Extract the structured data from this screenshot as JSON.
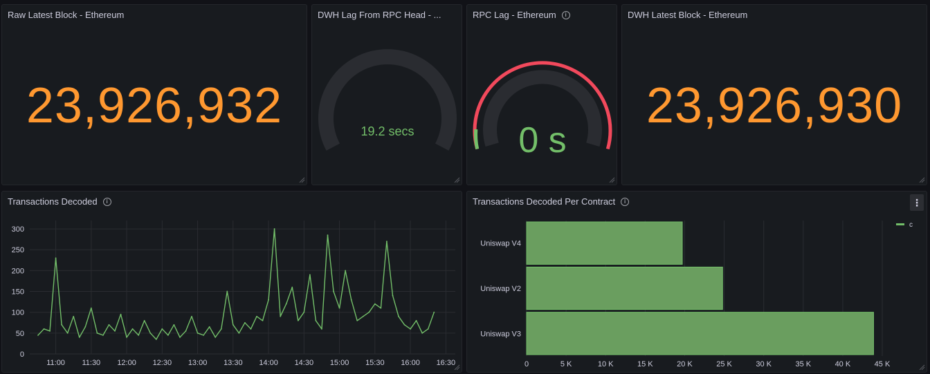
{
  "panels": {
    "raw_latest_block": {
      "title": "Raw Latest Block - Ethereum",
      "value": "23,926,932"
    },
    "dwh_lag": {
      "title": "DWH Lag From RPC Head - ...",
      "value": "19.2 secs"
    },
    "rpc_lag": {
      "title": "RPC Lag - Ethereum",
      "value": "0 s"
    },
    "dwh_latest_block": {
      "title": "DWH Latest Block - Ethereum",
      "value": "23,926,930"
    },
    "tx_decoded": {
      "title": "Transactions Decoded"
    },
    "tx_per_contract": {
      "title": "Transactions Decoded Per Contract",
      "legend": "c"
    }
  },
  "colors": {
    "stat": "#ff9830",
    "green": "#73bf69",
    "bar_fill": "#6a9e5f",
    "red": "#f2495c",
    "gauge_track": "#2a2c31"
  },
  "icons": {
    "info": "info-icon",
    "menu": "kebab-menu-icon",
    "resize": "resize-handle-icon"
  },
  "chart_data": [
    {
      "type": "line",
      "title": "Transactions Decoded",
      "ylim": [
        0,
        320
      ],
      "yticks": [
        0,
        50,
        100,
        150,
        200,
        250,
        300
      ],
      "xticks": [
        "11:00",
        "11:30",
        "12:00",
        "12:30",
        "13:00",
        "13:30",
        "14:00",
        "14:30",
        "15:00",
        "15:30",
        "16:00",
        "16:30"
      ],
      "grid": true,
      "series": [
        {
          "x": [
            "10:45",
            "10:50",
            "10:55",
            "11:00",
            "11:05",
            "11:10",
            "11:15",
            "11:20",
            "11:25",
            "11:30",
            "11:35",
            "11:40",
            "11:45",
            "11:50",
            "11:55",
            "12:00",
            "12:05",
            "12:10",
            "12:15",
            "12:20",
            "12:25",
            "12:30",
            "12:35",
            "12:40",
            "12:45",
            "12:50",
            "12:55",
            "13:00",
            "13:05",
            "13:10",
            "13:15",
            "13:20",
            "13:25",
            "13:30",
            "13:35",
            "13:40",
            "13:45",
            "13:50",
            "13:55",
            "14:00",
            "14:05",
            "14:10",
            "14:15",
            "14:20",
            "14:25",
            "14:30",
            "14:35",
            "14:40",
            "14:45",
            "14:50",
            "14:55",
            "15:00",
            "15:05",
            "15:10",
            "15:15",
            "15:20",
            "15:25",
            "15:30",
            "15:35",
            "15:40",
            "15:45",
            "15:50",
            "15:55",
            "16:00",
            "16:05",
            "16:10",
            "16:15",
            "16:20"
          ],
          "values": [
            45,
            60,
            55,
            230,
            70,
            50,
            90,
            40,
            65,
            110,
            50,
            45,
            70,
            55,
            95,
            40,
            60,
            45,
            80,
            50,
            35,
            60,
            45,
            70,
            40,
            55,
            90,
            50,
            45,
            65,
            40,
            60,
            150,
            70,
            50,
            75,
            60,
            90,
            80,
            130,
            300,
            90,
            120,
            160,
            80,
            100,
            190,
            80,
            60,
            285,
            150,
            110,
            200,
            130,
            80,
            90,
            100,
            120,
            110,
            270,
            140,
            90,
            70,
            60,
            80,
            50,
            60,
            100
          ]
        }
      ]
    },
    {
      "type": "bar",
      "orientation": "horizontal",
      "title": "Transactions Decoded Per Contract",
      "categories": [
        "Uniswap V4",
        "Uniswap V2",
        "Uniswap V3"
      ],
      "series": [
        {
          "name": "c",
          "values": [
            19700,
            24800,
            43900
          ]
        }
      ],
      "xlim": [
        0,
        45000
      ],
      "xticks": [
        "0",
        "5 K",
        "10 K",
        "15 K",
        "20 K",
        "25 K",
        "30 K",
        "35 K",
        "40 K",
        "45 K"
      ],
      "legend": "top-right",
      "grid": true
    },
    {
      "type": "gauge",
      "title": "DWH Lag From RPC Head - ...",
      "value_label": "19.2 secs"
    },
    {
      "type": "gauge",
      "title": "RPC Lag - Ethereum",
      "value_label": "0 s"
    }
  ]
}
